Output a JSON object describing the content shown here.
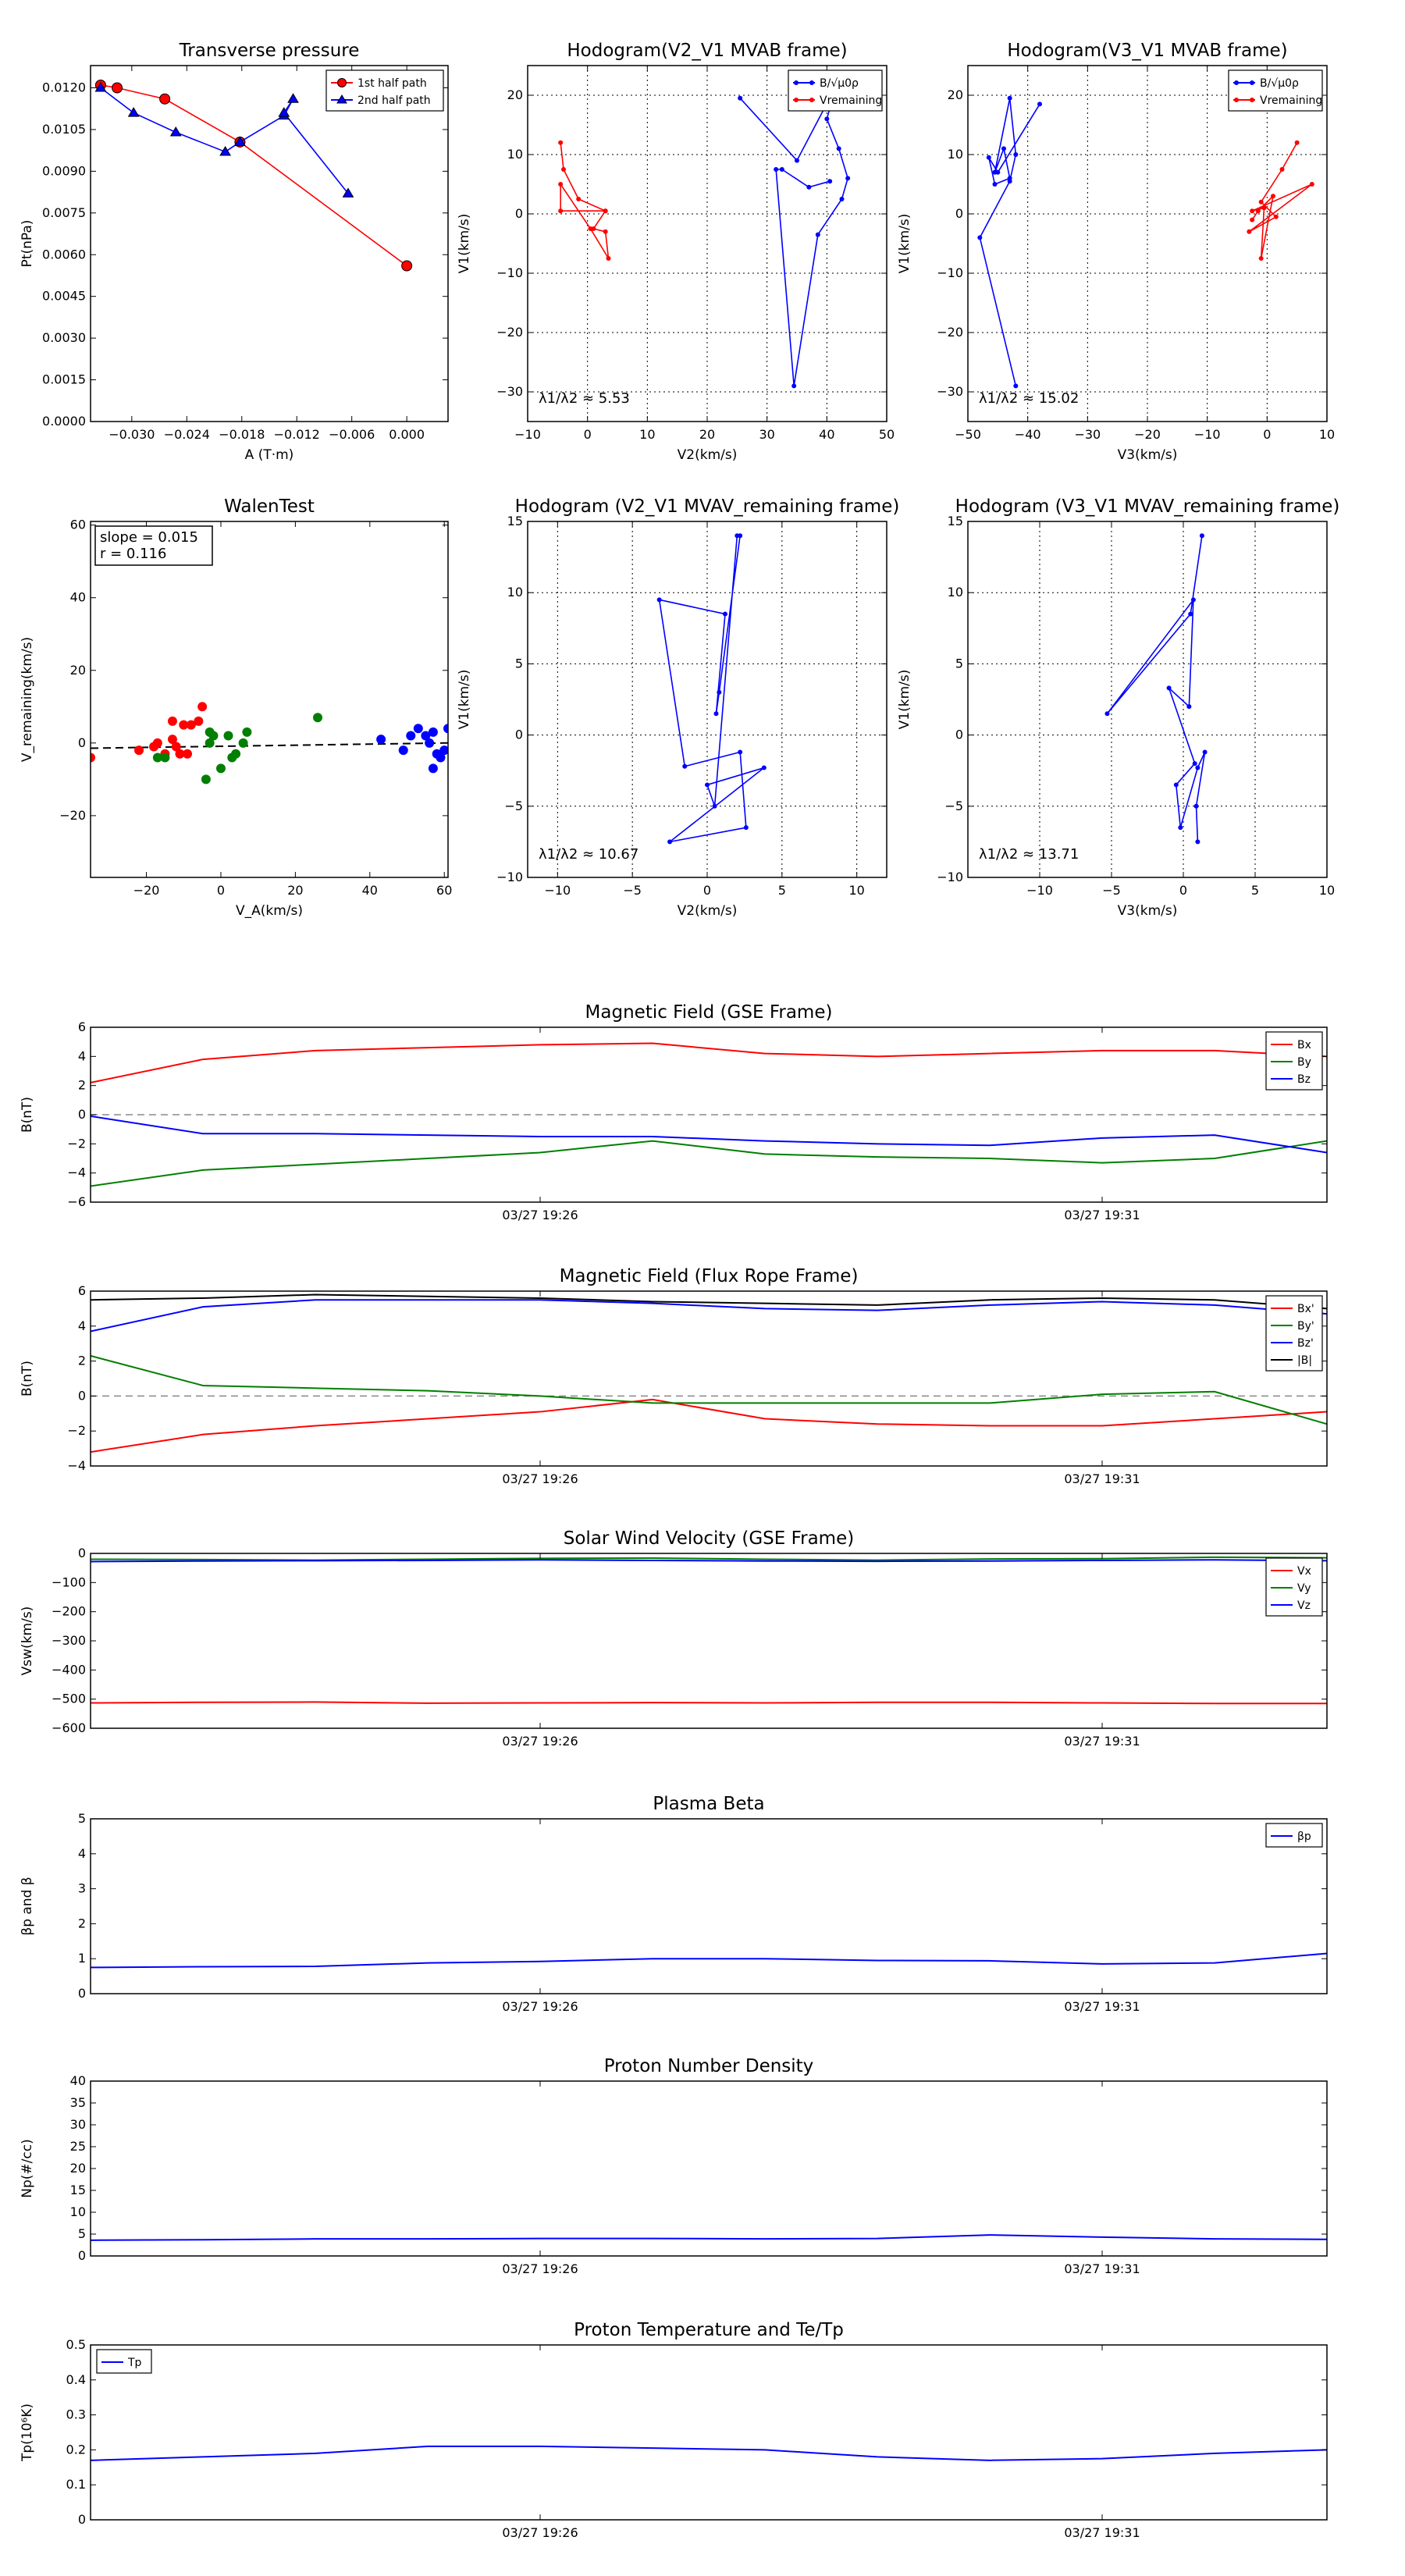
{
  "chart_data": [
    {
      "id": "pt",
      "type": "scatter",
      "title": "Transverse pressure",
      "xlabel": "A (T·m)",
      "ylabel": "Pt(nPa)",
      "xlim": [
        -0.0345,
        0.0045
      ],
      "ylim": [
        0,
        0.0128
      ],
      "xticks": [
        -0.03,
        -0.024,
        -0.018,
        -0.012,
        -0.006,
        0.0
      ],
      "xticklabels": [
        "−0.030",
        "−0.024",
        "−0.018",
        "−0.012",
        "−0.006",
        "0.000"
      ],
      "yticks": [
        0,
        0.0015,
        0.003,
        0.0045,
        0.006,
        0.0075,
        0.009,
        0.0105,
        0.012
      ],
      "yticklabels": [
        "0.0000",
        "0.0015",
        "0.0030",
        "0.0045",
        "0.0060",
        "0.0075",
        "0.0090",
        "0.0105",
        "0.0120"
      ],
      "grid": false,
      "legend": "top-right",
      "series": [
        {
          "name": "1st half path",
          "color": "#ff0000",
          "marker": "circle",
          "x": [
            0.0,
            -0.0182,
            -0.0264,
            -0.0316,
            -0.0334
          ],
          "y": [
            0.0056,
            0.01005,
            0.0116,
            0.012,
            0.0121
          ]
        },
        {
          "name": "2nd half path",
          "color": "#0000ff",
          "marker": "triangle",
          "x": [
            -0.0334,
            -0.0298,
            -0.0252,
            -0.0198,
            -0.0182,
            -0.0134,
            -0.0124,
            -0.0134,
            -0.0064
          ],
          "y": [
            0.012,
            0.0111,
            0.0104,
            0.0097,
            0.01005,
            0.011,
            0.0116,
            0.0111,
            0.0082
          ]
        }
      ]
    },
    {
      "id": "h1",
      "type": "line",
      "title": "Hodogram(V2_V1 MVAB frame)",
      "xlabel": "V2(km/s)",
      "ylabel": "V1(km/s)",
      "xlim": [
        -10,
        50
      ],
      "ylim": [
        -35,
        25
      ],
      "xticks": [
        -10,
        0,
        10,
        20,
        30,
        40,
        50
      ],
      "yticks": [
        -30,
        -20,
        -10,
        0,
        10,
        20
      ],
      "grid": true,
      "legend": "top-right",
      "annotation": "λ1/λ2 ≈ 5.53",
      "series": [
        {
          "name": "B/√μ0ρ",
          "color": "#0000ff",
          "x": [
            25.5,
            35.0,
            41.5,
            40.0,
            42.0,
            43.5,
            42.5,
            38.5,
            34.5,
            31.5,
            32.5,
            37.0,
            40.5
          ],
          "y": [
            19.5,
            9.0,
            21.5,
            16.0,
            11.0,
            6.0,
            2.5,
            -3.5,
            -29.0,
            7.5,
            7.5,
            4.5,
            5.5
          ]
        },
        {
          "name": "Vremaining",
          "color": "#ff0000",
          "x": [
            -4.5,
            -4.0,
            -1.5,
            3.0,
            1.0,
            3.0,
            3.5,
            0.5,
            -4.5,
            -4.5,
            3.0
          ],
          "y": [
            12.0,
            7.5,
            2.5,
            0.5,
            -2.5,
            -3.0,
            -7.5,
            -2.5,
            5.0,
            0.5,
            0.5
          ]
        }
      ]
    },
    {
      "id": "h2",
      "type": "line",
      "title": "Hodogram(V3_V1 MVAB frame)",
      "xlabel": "V3(km/s)",
      "ylabel": "V1(km/s)",
      "xlim": [
        -50,
        10
      ],
      "ylim": [
        -35,
        25
      ],
      "xticks": [
        -50,
        -40,
        -30,
        -20,
        -10,
        0,
        10
      ],
      "yticks": [
        -30,
        -20,
        -10,
        0,
        10,
        20
      ],
      "grid": true,
      "legend": "top-right",
      "annotation": "λ1/λ2 ≈ 15.02",
      "series": [
        {
          "name": "B/√μ0ρ",
          "color": "#0000ff",
          "x": [
            -38.0,
            -45.0,
            -46.5,
            -45.5,
            -43.0,
            -44.0,
            -45.5,
            -43.0,
            -42.0,
            -43.0,
            -48.0,
            -42.0
          ],
          "y": [
            18.5,
            7.0,
            9.5,
            5.0,
            6.0,
            11.0,
            7.0,
            19.5,
            10.0,
            5.5,
            -4.0,
            -29.0
          ]
        },
        {
          "name": "Vremaining",
          "color": "#ff0000",
          "x": [
            5.0,
            2.5,
            -1.0,
            1.5,
            -3.0,
            7.5,
            -2.5,
            -0.5,
            -1.0,
            1.0,
            -1.5,
            -2.5
          ],
          "y": [
            12.0,
            7.5,
            2.0,
            -0.5,
            -3.0,
            5.0,
            0.5,
            1.0,
            -7.5,
            3.0,
            0.5,
            -1.0
          ]
        }
      ]
    },
    {
      "id": "walen",
      "type": "scatter",
      "title": "WalenTest",
      "xlabel": "V_A(km/s)",
      "ylabel": "V_remaining(km/s)",
      "xlim": [
        -35,
        61
      ],
      "ylim": [
        -37,
        61
      ],
      "xticks": [
        -20,
        0,
        20,
        40,
        60
      ],
      "yticks": [
        -20,
        0,
        20,
        40,
        60
      ],
      "grid": false,
      "annotation": [
        "slope = 0.015",
        "r = 0.116"
      ],
      "fit": {
        "slope": 0.015,
        "intercept": -0.9,
        "color": "#000000",
        "style": "dashed"
      },
      "series": [
        {
          "color": "#ff0000",
          "x": [
            -35,
            -22,
            -18,
            -17,
            -15,
            -13,
            -13,
            -12,
            -11,
            -10,
            -9,
            -8,
            -6,
            -5
          ],
          "y": [
            -4,
            -2,
            -1,
            0,
            -3,
            6,
            1,
            -1,
            -3,
            5,
            -3,
            5,
            6,
            10
          ]
        },
        {
          "color": "#007f00",
          "x": [
            -17,
            -15,
            -4,
            -3,
            -3,
            -2,
            0,
            2,
            3,
            4,
            6,
            7,
            26
          ],
          "y": [
            -4,
            -4,
            -10,
            3,
            0,
            2,
            -7,
            2,
            -4,
            -3,
            0,
            3,
            7
          ]
        },
        {
          "color": "#0000ff",
          "x": [
            43,
            49,
            51,
            53,
            55,
            56,
            57,
            57,
            58,
            59,
            60,
            61
          ],
          "y": [
            1,
            -2,
            2,
            4,
            2,
            0,
            3,
            -7,
            -3,
            -4,
            -2,
            4
          ]
        }
      ]
    },
    {
      "id": "h3",
      "type": "line",
      "title": "Hodogram (V2_V1 MVAV_remaining frame)",
      "xlabel": "V2(km/s)",
      "ylabel": "V1(km/s)",
      "xlim": [
        -12,
        12
      ],
      "ylim": [
        -10,
        15
      ],
      "xticks": [
        -10,
        -5,
        0,
        5,
        10
      ],
      "yticks": [
        -10,
        -5,
        0,
        5,
        10,
        15
      ],
      "grid": true,
      "annotation": "λ1/λ2 ≈ 10.67",
      "series": [
        {
          "color": "#0000ff",
          "x": [
            2.2,
            0.8,
            0.6,
            1.2,
            -3.2,
            -1.5,
            2.2,
            2.6,
            -2.5,
            3.8,
            0.0,
            0.5,
            2.0
          ],
          "y": [
            14.0,
            3.0,
            1.5,
            8.5,
            9.5,
            -2.2,
            -1.2,
            -6.5,
            -7.5,
            -2.3,
            -3.5,
            -5.0,
            14.0
          ]
        }
      ]
    },
    {
      "id": "h4",
      "type": "line",
      "title": "Hodogram (V3_V1 MVAV_remaining frame)",
      "xlabel": "V3(km/s)",
      "ylabel": "V1(km/s)",
      "xlim": [
        -15,
        10
      ],
      "ylim": [
        -10,
        15
      ],
      "xticks": [
        -10,
        -5,
        0,
        5,
        10
      ],
      "yticks": [
        -10,
        -5,
        0,
        5,
        10,
        15
      ],
      "grid": true,
      "annotation": "λ1/λ2 ≈ 13.71",
      "series": [
        {
          "color": "#0000ff",
          "x": [
            1.3,
            0.5,
            -5.3,
            0.7,
            0.4,
            -1.0,
            0.8,
            -0.5,
            -0.2,
            1.0,
            1.5,
            0.9,
            1.0
          ],
          "y": [
            14.0,
            8.5,
            1.5,
            9.5,
            2.0,
            3.3,
            -2.0,
            -3.5,
            -6.5,
            -2.3,
            -1.2,
            -5.0,
            -7.5
          ]
        }
      ]
    },
    {
      "id": "bgse",
      "type": "line",
      "title": "Magnetic Field (GSE Frame)",
      "xlabel": "",
      "ylabel": "B(nT)",
      "xlim": [
        0,
        11
      ],
      "ylim": [
        -6,
        6
      ],
      "yticks": [
        -6,
        -4,
        -2,
        0,
        2,
        4,
        6
      ],
      "xticks": [
        4,
        9
      ],
      "xticklabels": [
        "03/27 19:26",
        "03/27 19:31"
      ],
      "zero_line": true,
      "legend": "top-right",
      "series": [
        {
          "name": "Bx",
          "color": "#ff0000",
          "x": [
            0,
            1,
            2,
            3,
            4,
            5,
            6,
            7,
            8,
            9,
            10,
            11
          ],
          "y": [
            2.2,
            3.8,
            4.4,
            4.6,
            4.8,
            4.9,
            4.2,
            4.0,
            4.2,
            4.4,
            4.4,
            4.0
          ]
        },
        {
          "name": "By",
          "color": "#007f00",
          "x": [
            0,
            1,
            2,
            3,
            4,
            5,
            6,
            7,
            8,
            9,
            10,
            11
          ],
          "y": [
            -4.9,
            -3.8,
            -3.4,
            -3.0,
            -2.6,
            -1.8,
            -2.7,
            -2.9,
            -3.0,
            -3.3,
            -3.0,
            -1.8
          ]
        },
        {
          "name": "Bz",
          "color": "#0000ff",
          "x": [
            0,
            1,
            2,
            3,
            4,
            5,
            6,
            7,
            8,
            9,
            10,
            11
          ],
          "y": [
            -0.1,
            -1.3,
            -1.3,
            -1.4,
            -1.5,
            -1.5,
            -1.8,
            -2.0,
            -2.1,
            -1.6,
            -1.4,
            -2.6
          ]
        }
      ]
    },
    {
      "id": "bfr",
      "type": "line",
      "title": "Magnetic Field (Flux Rope Frame)",
      "xlabel": "",
      "ylabel": "B(nT)",
      "xlim": [
        0,
        11
      ],
      "ylim": [
        -4,
        6
      ],
      "yticks": [
        -4,
        -2,
        0,
        2,
        4,
        6
      ],
      "xticks": [
        4,
        9
      ],
      "xticklabels": [
        "03/27 19:26",
        "03/27 19:31"
      ],
      "zero_line": true,
      "legend": "top-right",
      "series": [
        {
          "name": "Bx'",
          "color": "#ff0000",
          "x": [
            0,
            1,
            2,
            3,
            4,
            5,
            6,
            7,
            8,
            9,
            10,
            11
          ],
          "y": [
            -3.2,
            -2.2,
            -1.7,
            -1.3,
            -0.9,
            -0.2,
            -1.3,
            -1.6,
            -1.7,
            -1.7,
            -1.3,
            -0.9
          ]
        },
        {
          "name": "By'",
          "color": "#007f00",
          "x": [
            0,
            1,
            2,
            3,
            4,
            5,
            6,
            7,
            8,
            9,
            10,
            11
          ],
          "y": [
            2.3,
            0.6,
            0.45,
            0.3,
            0.0,
            -0.4,
            -0.4,
            -0.4,
            -0.4,
            0.1,
            0.25,
            -1.6
          ]
        },
        {
          "name": "Bz'",
          "color": "#0000ff",
          "x": [
            0,
            1,
            2,
            3,
            4,
            5,
            6,
            7,
            8,
            9,
            10,
            11
          ],
          "y": [
            3.7,
            5.1,
            5.5,
            5.5,
            5.5,
            5.3,
            5.0,
            4.9,
            5.2,
            5.4,
            5.2,
            4.7
          ]
        },
        {
          "name": "|B|",
          "color": "#000000",
          "x": [
            0,
            1,
            2,
            3,
            4,
            5,
            6,
            7,
            8,
            9,
            10,
            11
          ],
          "y": [
            5.5,
            5.6,
            5.8,
            5.7,
            5.6,
            5.4,
            5.3,
            5.2,
            5.5,
            5.6,
            5.5,
            5.0
          ]
        }
      ]
    },
    {
      "id": "vsw",
      "type": "line",
      "title": "Solar Wind Velocity (GSE Frame)",
      "xlabel": "",
      "ylabel": "Vsw(km/s)",
      "xlim": [
        0,
        11
      ],
      "ylim": [
        -600,
        0
      ],
      "yticks": [
        -600,
        -500,
        -400,
        -300,
        -200,
        -100,
        0
      ],
      "yticklabels": [
        "−600",
        "−500",
        "−400",
        "−300",
        "−200",
        "−100",
        "0"
      ],
      "xticks": [
        4,
        9
      ],
      "xticklabels": [
        "03/27 19:26",
        "03/27 19:31"
      ],
      "legend": "top-right",
      "series": [
        {
          "name": "Vx",
          "color": "#ff0000",
          "x": [
            0,
            1,
            2,
            3,
            4,
            5,
            6,
            7,
            8,
            9,
            10,
            11
          ],
          "y": [
            -513,
            -511,
            -510,
            -514,
            -513,
            -512,
            -513,
            -511,
            -511,
            -513,
            -515,
            -515
          ]
        },
        {
          "name": "Vy",
          "color": "#007f00",
          "x": [
            0,
            1,
            2,
            3,
            4,
            5,
            6,
            7,
            8,
            9,
            10,
            11
          ],
          "y": [
            -20,
            -21,
            -23,
            -20,
            -17,
            -16,
            -20,
            -23,
            -19,
            -18,
            -13,
            -15
          ]
        },
        {
          "name": "Vz",
          "color": "#0000ff",
          "x": [
            0,
            1,
            2,
            3,
            4,
            5,
            6,
            7,
            8,
            9,
            10,
            11
          ],
          "y": [
            -28,
            -26,
            -25,
            -24,
            -22,
            -24,
            -26,
            -27,
            -26,
            -24,
            -22,
            -25
          ]
        }
      ]
    },
    {
      "id": "beta",
      "type": "line",
      "title": "Plasma Beta",
      "xlabel": "",
      "ylabel": "βp and β",
      "xlim": [
        0,
        11
      ],
      "ylim": [
        0,
        5
      ],
      "yticks": [
        0,
        1,
        2,
        3,
        4,
        5
      ],
      "xticks": [
        4,
        9
      ],
      "xticklabels": [
        "03/27 19:26",
        "03/27 19:31"
      ],
      "legend": "top-right",
      "series": [
        {
          "name": "βp",
          "color": "#0000ff",
          "x": [
            0,
            1,
            2,
            3,
            4,
            5,
            6,
            7,
            8,
            9,
            10,
            11
          ],
          "y": [
            0.75,
            0.77,
            0.78,
            0.88,
            0.92,
            1.0,
            1.0,
            0.95,
            0.94,
            0.85,
            0.88,
            1.15
          ]
        }
      ]
    },
    {
      "id": "np",
      "type": "line",
      "title": "Proton Number Density",
      "xlabel": "",
      "ylabel": "Np(#/cc)",
      "xlim": [
        0,
        11
      ],
      "ylim": [
        0,
        40
      ],
      "yticks": [
        0,
        5,
        10,
        15,
        20,
        25,
        30,
        35,
        40
      ],
      "xticks": [
        4,
        9
      ],
      "xticklabels": [
        "03/27 19:26",
        "03/27 19:31"
      ],
      "series": [
        {
          "color": "#0000ff",
          "x": [
            0,
            1,
            2,
            3,
            4,
            5,
            6,
            7,
            8,
            9,
            10,
            11
          ],
          "y": [
            3.6,
            3.7,
            3.9,
            3.9,
            4.0,
            4.0,
            3.9,
            4.0,
            4.8,
            4.3,
            3.9,
            3.8
          ]
        }
      ]
    },
    {
      "id": "tp",
      "type": "line",
      "title": "Proton Temperature and Te/Tp",
      "xlabel": "",
      "ylabel": "Tp(10⁶K)",
      "xlim": [
        0,
        11
      ],
      "ylim": [
        0,
        0.5
      ],
      "yticks": [
        0,
        0.1,
        0.2,
        0.3,
        0.4,
        0.5
      ],
      "xticks": [
        4,
        9
      ],
      "xticklabels": [
        "03/27 19:26",
        "03/27 19:31"
      ],
      "legend": "top-left",
      "series": [
        {
          "name": "Tp",
          "color": "#0000ff",
          "x": [
            0,
            1,
            2,
            3,
            4,
            5,
            6,
            7,
            8,
            9,
            10,
            11
          ],
          "y": [
            0.17,
            0.18,
            0.19,
            0.21,
            0.21,
            0.205,
            0.2,
            0.18,
            0.17,
            0.175,
            0.19,
            0.2
          ]
        }
      ]
    }
  ]
}
